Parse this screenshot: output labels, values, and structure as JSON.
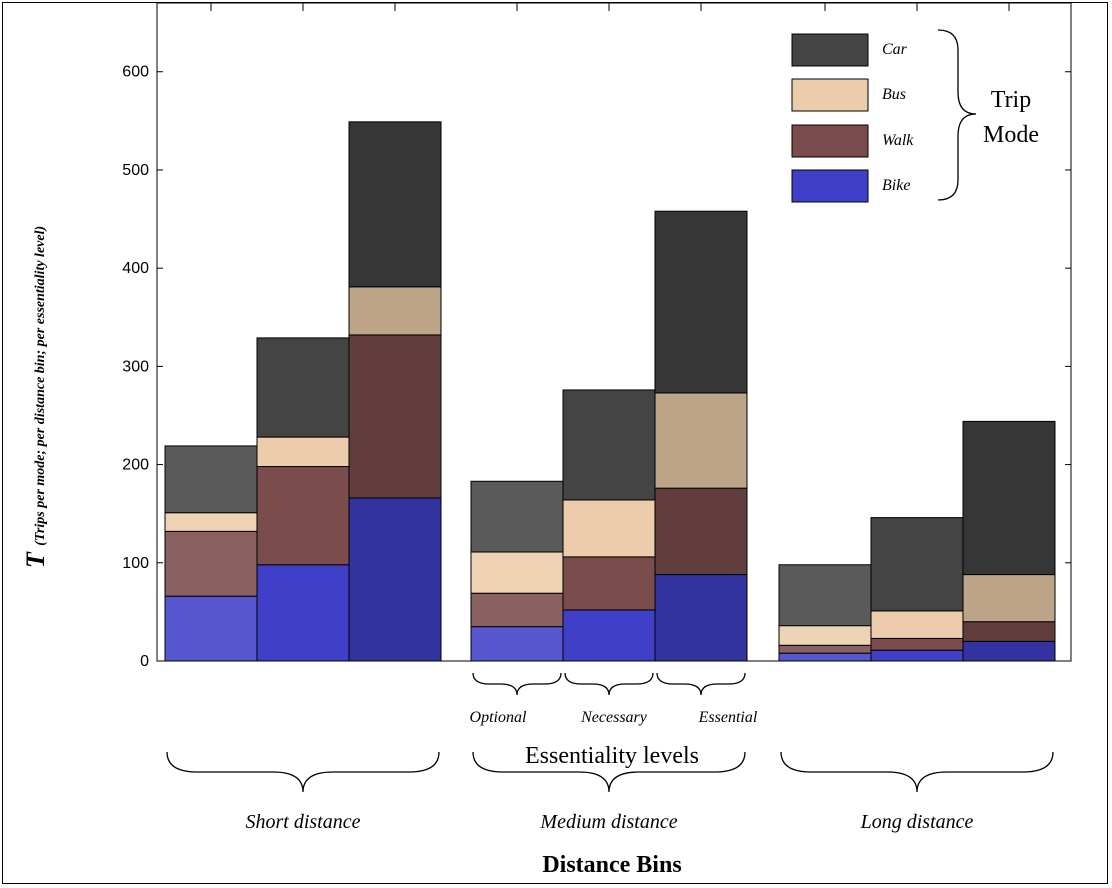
{
  "chart_data": {
    "type": "bar",
    "stacked": true,
    "title": "",
    "xlabel": "Distance Bins",
    "ylabel": "T",
    "ylabel_sub": "(Trips per mode; per distance bin; per essentiality level)",
    "ylim": [
      0,
      670
    ],
    "yticks": [
      0,
      100,
      200,
      300,
      400,
      500,
      600
    ],
    "groups": [
      "Short distance",
      "Medium distance",
      "Long distance"
    ],
    "levels": [
      "Optional",
      "Necessary",
      "Essential"
    ],
    "levels_title": "Essentiality levels",
    "legend_title_line1": "Trip",
    "legend_title_line2": "Mode",
    "legend_position": "top-right",
    "series": [
      {
        "name": "Bike",
        "color": "#3f3fc8",
        "values": [
          [
            66,
            98,
            166
          ],
          [
            35,
            52,
            88
          ],
          [
            8,
            11,
            20
          ]
        ]
      },
      {
        "name": "Walk",
        "color": "#7a4c4c",
        "values": [
          [
            66,
            100,
            166
          ],
          [
            34,
            54,
            88
          ],
          [
            8,
            12,
            20
          ]
        ]
      },
      {
        "name": "Bus",
        "color": "#ecccaa",
        "values": [
          [
            19,
            30,
            49
          ],
          [
            42,
            58,
            97
          ],
          [
            20,
            28,
            48
          ]
        ]
      },
      {
        "name": "Car",
        "color": "#444444",
        "values": [
          [
            68,
            101,
            168
          ],
          [
            72,
            112,
            185
          ],
          [
            62,
            95,
            156
          ]
        ]
      }
    ],
    "legend_order": [
      "Car",
      "Bus",
      "Walk",
      "Bike"
    ]
  }
}
